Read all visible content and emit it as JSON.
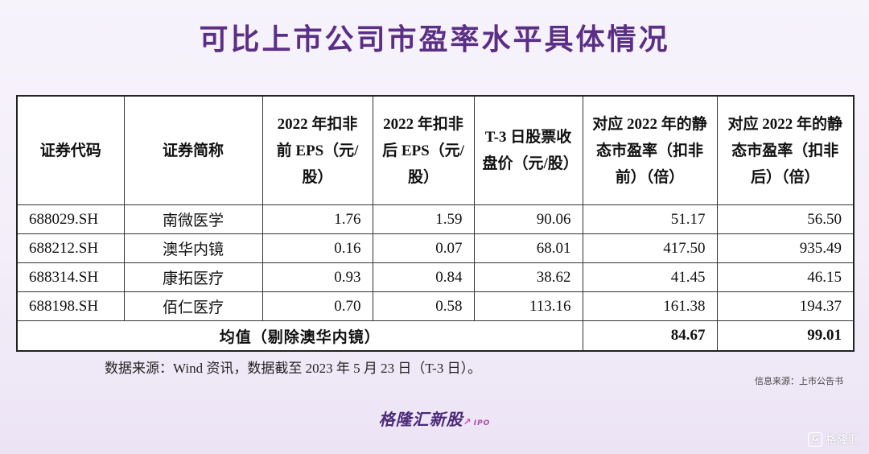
{
  "title": "可比上市公司市盈率水平具体情况",
  "table": {
    "headers": [
      "证券代码",
      "证券简称",
      "2022 年扣非前 EPS（元/股）",
      "2022 年扣非后 EPS（元/股）",
      "T-3 日股票收盘价（元/股）",
      "对应 2022 年的静态市盈率（扣非前）（倍）",
      "对应 2022 年的静态市盈率（扣非后）（倍）"
    ],
    "rows": [
      {
        "code": "688029.SH",
        "name": "南微医学",
        "eps_pre": "1.76",
        "eps_post": "1.59",
        "price": "90.06",
        "pe_pre": "51.17",
        "pe_post": "56.50"
      },
      {
        "code": "688212.SH",
        "name": "澳华内镜",
        "eps_pre": "0.16",
        "eps_post": "0.07",
        "price": "68.01",
        "pe_pre": "417.50",
        "pe_post": "935.49"
      },
      {
        "code": "688314.SH",
        "name": "康拓医疗",
        "eps_pre": "0.93",
        "eps_post": "0.84",
        "price": "38.62",
        "pe_pre": "41.45",
        "pe_post": "46.15"
      },
      {
        "code": "688198.SH",
        "name": "佰仁医疗",
        "eps_pre": "0.70",
        "eps_post": "0.58",
        "price": "113.16",
        "pe_pre": "161.38",
        "pe_post": "194.37"
      }
    ],
    "average": {
      "label": "均值（剔除澳华内镜）",
      "pe_pre": "84.67",
      "pe_post": "99.01"
    }
  },
  "watermark": {
    "text": "格隆汇新股",
    "sub": "IPO"
  },
  "source_note": "数据来源：Wind 资讯，数据截至 2023 年 5 月 23 日（T-3 日）。",
  "info_source": "信息来源：上市公告书",
  "brand": {
    "text": "格隆汇新股",
    "sub": "IPO"
  },
  "corner_logo": {
    "text": "格隆汇"
  }
}
